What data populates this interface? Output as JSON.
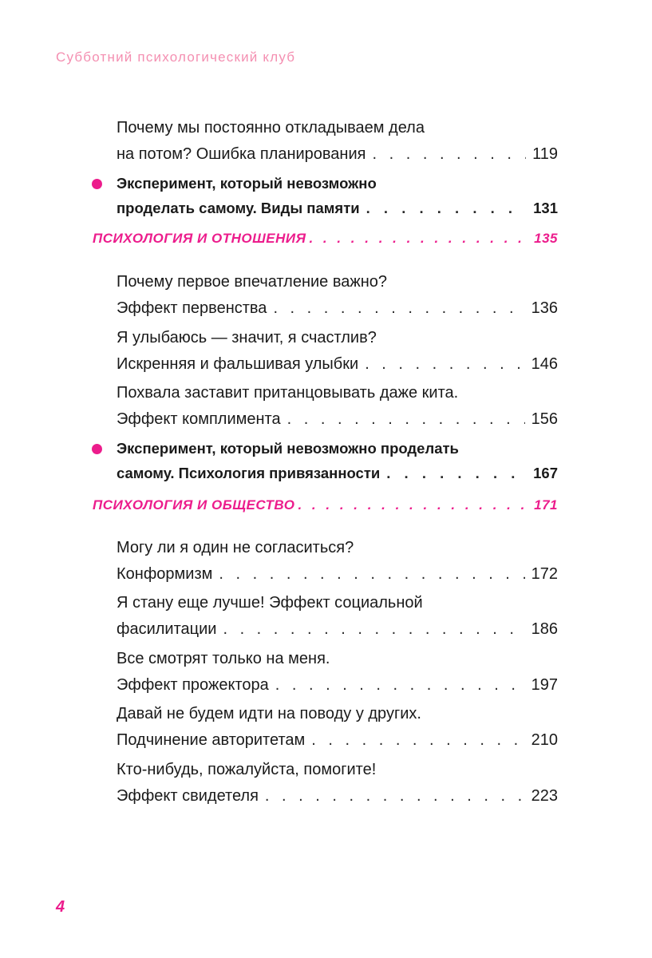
{
  "running_head": "Субботний психологический клуб",
  "page_number": "4",
  "toc": {
    "e1": {
      "l1": "Почему мы постоянно откладываем дела",
      "l2": "на потом? Ошибка планирования",
      "page": "119"
    },
    "e2": {
      "l1": "Эксперимент, который невозможно",
      "l2": "проделать самому. Виды памяти",
      "page": "131"
    },
    "s1": {
      "title": "ПСИХОЛОГИЯ И ОТНОШЕНИЯ",
      "page": "135"
    },
    "e3": {
      "l1": "Почему первое впечатление важно?",
      "l2": "Эффект первенства",
      "page": "136"
    },
    "e4": {
      "l1": "Я улыбаюсь — значит, я счастлив?",
      "l2": "Искренняя и фальшивая улыбки",
      "page": "146"
    },
    "e5": {
      "l1": "Похвала заставит пританцовывать даже кита.",
      "l2": "Эффект комплимента",
      "page": "156"
    },
    "e6": {
      "l1": "Эксперимент, который невозможно проделать",
      "l2": "самому. Психология привязанности",
      "page": "167"
    },
    "s2": {
      "title": "ПСИХОЛОГИЯ И ОБЩЕСТВО",
      "page": "171"
    },
    "e7": {
      "l1": "Могу ли я один не согласиться?",
      "l2": "Конформизм",
      "page": "172"
    },
    "e8": {
      "l1": "Я стану еще лучше! Эффект социальной",
      "l2": "фасилитации",
      "page": "186"
    },
    "e9": {
      "l1": "Все смотрят только на меня.",
      "l2": "Эффект прожектора",
      "page": "197"
    },
    "e10": {
      "l1": "Давай не будем идти на поводу у других.",
      "l2": "Подчинение авторитетам",
      "page": "210"
    },
    "e11": {
      "l1": "Кто-нибудь, пожалуйста, помогите!",
      "l2": "Эффект свидетеля",
      "page": "223"
    }
  },
  "colors": {
    "accent": "#ec1c8c",
    "running_head": "#f48fb1",
    "text": "#1a1a1a"
  }
}
